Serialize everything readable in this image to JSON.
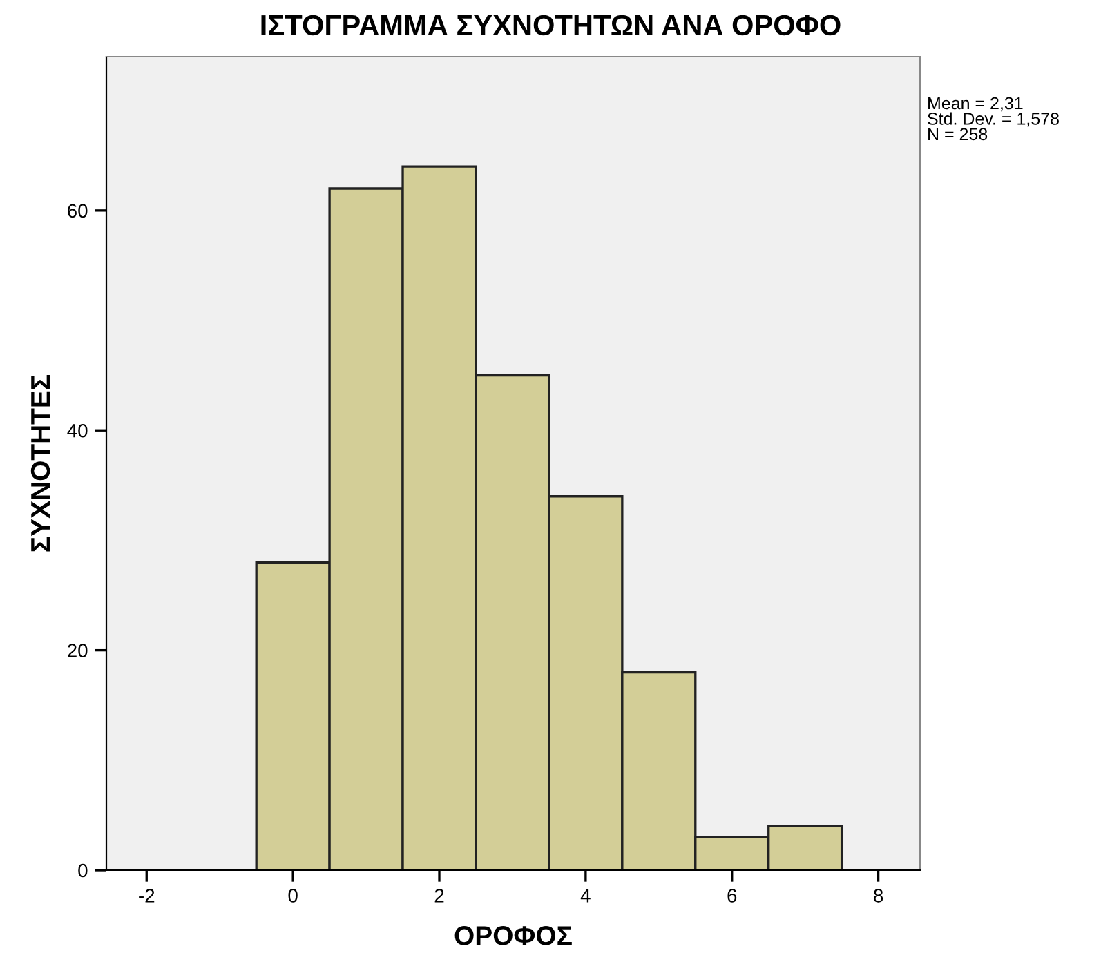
{
  "chart_data": {
    "type": "histogram",
    "title": "ΙΣΤΟΓΡΑΜΜΑ ΣΥΧΝΟΤΗΤΩΝ ΑΝΑ ΟΡΟΦΟ",
    "xlabel": "ΟΡΟΦΟΣ",
    "ylabel": "ΣΥΧΝΟΤΗΤΕΣ",
    "bins": [
      -0.5,
      0.5,
      1.5,
      2.5,
      3.5,
      4.5,
      5.5,
      6.5,
      7.5
    ],
    "values": [
      28,
      62,
      64,
      45,
      34,
      18,
      3,
      4
    ],
    "color": "#d3ce97",
    "xlim": [
      -2.55,
      8.57
    ],
    "xticks": [
      -2,
      0,
      2,
      4,
      6,
      8
    ],
    "ylim": [
      0,
      74
    ],
    "yticks": [
      0,
      20,
      40,
      60
    ],
    "annotations": [
      "Mean = 2,31\nStd. Dev. = 1,578\nN = 258"
    ],
    "grid": false
  }
}
